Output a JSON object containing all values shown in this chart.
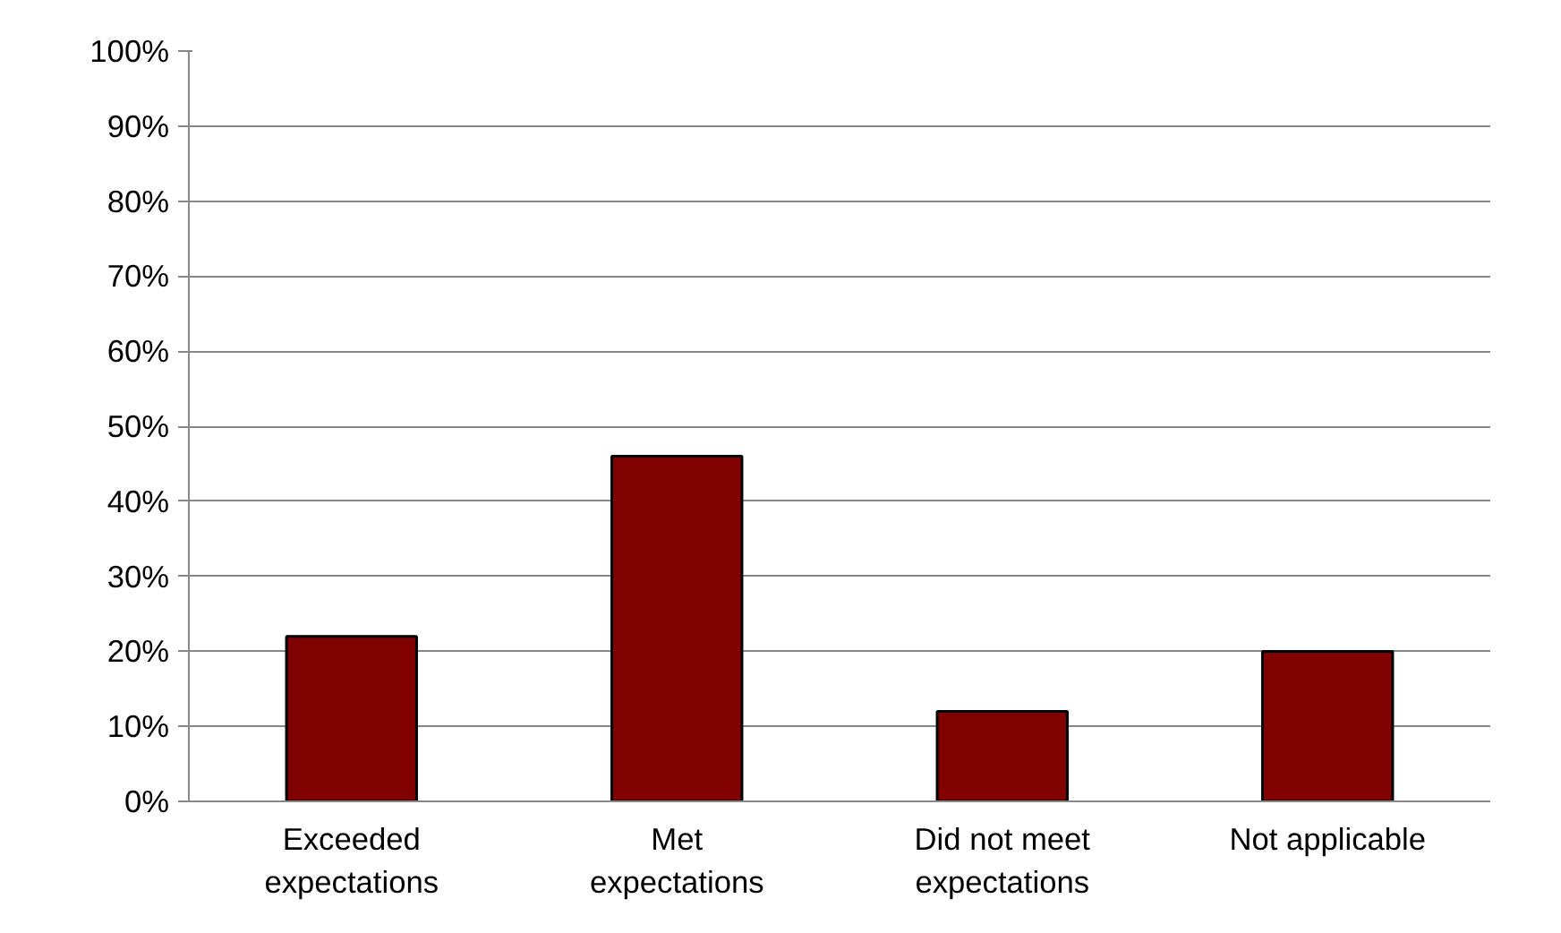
{
  "chart_data": {
    "type": "bar",
    "categories": [
      "Exceeded expectations",
      "Met expectations",
      "Did not meet expectations",
      "Not applicable"
    ],
    "values": [
      22,
      46,
      12,
      20
    ],
    "color": "#800000",
    "ylim": [
      0,
      100
    ],
    "yticks": [
      {
        "value": 0,
        "label": "0%"
      },
      {
        "value": 10,
        "label": "10%"
      },
      {
        "value": 20,
        "label": "20%"
      },
      {
        "value": 30,
        "label": "30%"
      },
      {
        "value": 40,
        "label": "40%"
      },
      {
        "value": 50,
        "label": "50%"
      },
      {
        "value": 60,
        "label": "60%"
      },
      {
        "value": 70,
        "label": "70%"
      },
      {
        "value": 80,
        "label": "80%"
      },
      {
        "value": 90,
        "label": "90%"
      },
      {
        "value": 100,
        "label": "100%"
      }
    ],
    "grid": "y"
  }
}
